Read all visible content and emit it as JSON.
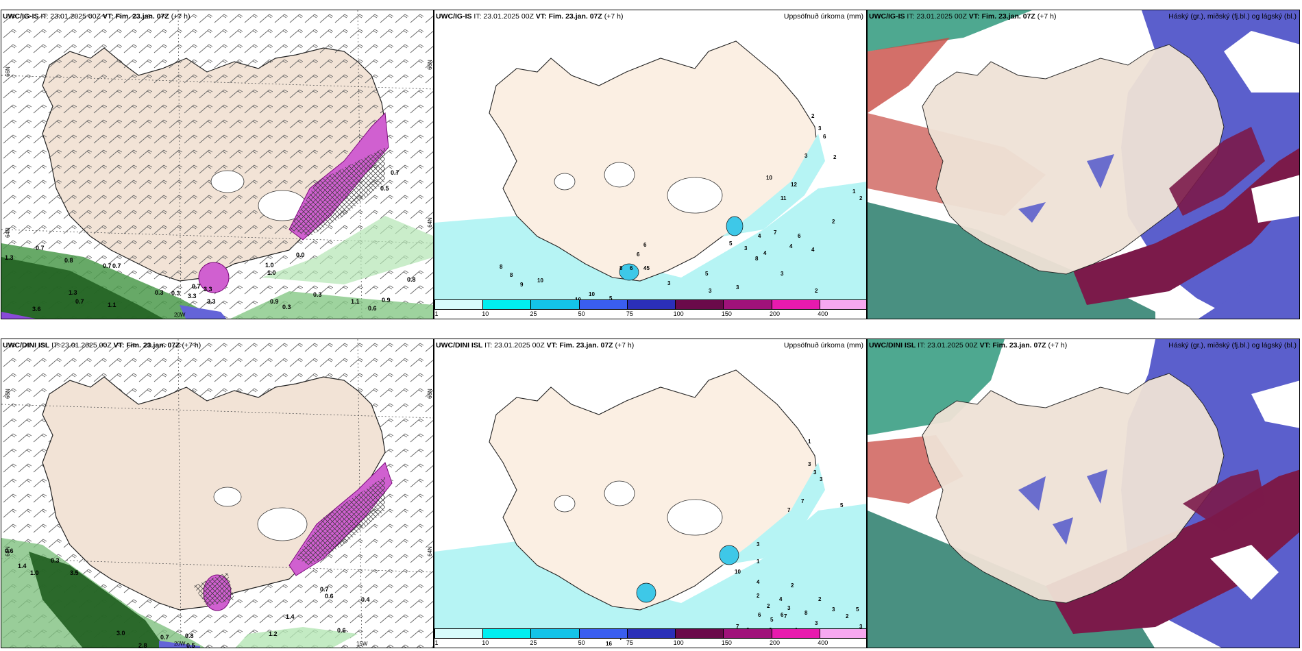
{
  "panels": [
    {
      "header_model": "UWC/IG-IS",
      "header_it": "IT: 23.01.2025 00Z",
      "header_vt_label": "VT:",
      "header_vt": "Fim. 23.jan. 07Z",
      "header_lead": "(+7 h)",
      "right_title": ""
    },
    {
      "header_model": "UWC/IG-IS",
      "header_it": "IT: 23.01.2025 00Z",
      "header_vt_label": "VT:",
      "header_vt": "Fim. 23.jan. 07Z",
      "header_lead": "(+7 h)",
      "right_title": "Uppsöfnuð úrkoma (mm)"
    },
    {
      "header_model": "UWC/IG-IS",
      "header_it": "IT: 23.01.2025 00Z",
      "header_vt_label": "VT:",
      "header_vt": "Fim. 23.jan. 07Z",
      "header_lead": "(+7 h)",
      "right_title": "Háský (gr.), miðský (fj.bl.) og lágský (bl.)"
    },
    {
      "header_model": "UWC/DINI ISL",
      "header_it": "IT: 23.01.2025 00Z",
      "header_vt_label": "VT:",
      "header_vt": "Fim. 23.jan. 07Z",
      "header_lead": "(+7 h)",
      "right_title": ""
    },
    {
      "header_model": "UWC/DINI ISL",
      "header_it": "IT: 23.01.2025 00Z",
      "header_vt_label": "VT:",
      "header_vt": "Fim. 23.jan. 07Z",
      "header_lead": "(+7 h)",
      "right_title": "Uppsöfnuð úrkoma (mm)"
    },
    {
      "header_model": "UWC/DINI ISL",
      "header_it": "IT: 23.01.2025 00Z",
      "header_vt_label": "VT:",
      "header_vt": "Fim. 23.jan. 07Z",
      "header_lead": "(+7 h)",
      "right_title": "Háský (gr.), miðský (fj.bl.) og lágský (bl.)"
    }
  ],
  "colorbar": {
    "ticks": [
      "1",
      "10",
      "25",
      "50",
      "75",
      "100",
      "150",
      "200",
      "400"
    ],
    "colors": [
      "#d8fbfb",
      "#00eef0",
      "#14c3e8",
      "#3a5ef0",
      "#2b2fb8",
      "#6a0a4a",
      "#a0127a",
      "#e81aae",
      "#f6a8f0"
    ]
  },
  "graticule": {
    "top_left": {
      "lat_left_upper": "66N",
      "lat_left_lower": "64N",
      "lat_right_upper": "66N",
      "lat_right_lower": "64N",
      "lon_left": "20W",
      "lon_right": "15W"
    },
    "bottom_left": {
      "lat_left_upper": "66N",
      "lat_left_lower": "64N",
      "lat_right_upper": "66N",
      "lat_right_lower": "64N",
      "lon_left": "20W",
      "lon_right": "15W"
    }
  },
  "precip_labels_top": [
    "2",
    "3",
    "6",
    "3",
    "2",
    "10",
    "12",
    "1",
    "2",
    "11",
    "2",
    "7",
    "4",
    "6",
    "4",
    "4",
    "4",
    "8",
    "5",
    "3",
    "6",
    "6",
    "45",
    "6",
    "5",
    "3",
    "3",
    "3",
    "3",
    "2",
    "8",
    "8",
    "8",
    "9",
    "10",
    "10",
    "10",
    "5"
  ],
  "precip_labels_bottom": [
    "1",
    "3",
    "3",
    "3",
    "5",
    "7",
    "7",
    "3",
    "1",
    "10",
    "4",
    "2",
    "2",
    "3",
    "2",
    "3",
    "3",
    "3",
    "5",
    "6",
    "7",
    "6",
    "1",
    "4",
    "2",
    "3",
    "4",
    "4",
    "6",
    "6",
    "7",
    "8",
    "5",
    "6",
    "2",
    "16",
    "7"
  ],
  "snow_labels_top": [
    "0.7",
    "0.8",
    "0.7",
    "0.7",
    "1.3",
    "0.7",
    "1.0",
    "1.1",
    "3.6",
    "0.3",
    "0.3",
    "3.3",
    "0.7",
    "3.3",
    "3.3",
    "1.0",
    "0.3",
    "0.0",
    "1.1",
    "0.6",
    "0.9",
    "0.8",
    "1.3",
    "0.9",
    "0.3",
    "0.5",
    "0.7"
  ],
  "snow_labels_bottom": [
    "0.6",
    "1.4",
    "1.0",
    "0.3",
    "3.5",
    "3.0",
    "0.7",
    "0.8",
    "0.5",
    "2.8",
    "3.6",
    "6.3",
    "1.2",
    "0.6",
    "0.7",
    "0.6",
    "0.4",
    "1.4"
  ]
}
